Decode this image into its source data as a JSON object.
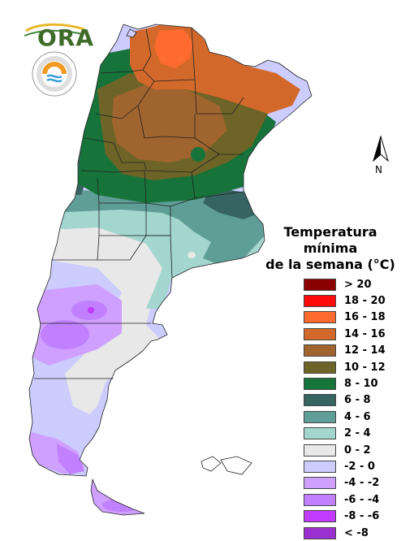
{
  "brand": {
    "logo_text": "ORA"
  },
  "compass": {
    "label": "N",
    "icon": "north-arrow-icon"
  },
  "legend": {
    "title_line1": "Temperatura mínima",
    "title_line2": "de la semana (°C)",
    "items": [
      {
        "label": "> 20",
        "color": "#8b0000"
      },
      {
        "label": "18 - 20",
        "color": "#ff0a0a"
      },
      {
        "label": "16 - 18",
        "color": "#ff6a2e"
      },
      {
        "label": "14 - 16",
        "color": "#d2692a"
      },
      {
        "label": "12 - 14",
        "color": "#a0642e"
      },
      {
        "label": "10 - 12",
        "color": "#6e6428"
      },
      {
        "label": "8 - 10",
        "color": "#16733a"
      },
      {
        "label": "6 - 8",
        "color": "#356462"
      },
      {
        "label": "4 - 6",
        "color": "#5f9d97"
      },
      {
        "label": "2 - 4",
        "color": "#a2d6cf"
      },
      {
        "label": "0 - 2",
        "color": "#e8e8e8"
      },
      {
        "label": "-2 - 0",
        "color": "#ccccff"
      },
      {
        "label": "-4 - -2",
        "color": "#cfa0ff"
      },
      {
        "label": "-6 - -4",
        "color": "#c080ff"
      },
      {
        "label": "-8 - -6",
        "color": "#c03aff"
      },
      {
        "label": "< -8",
        "color": "#9b30d0"
      }
    ]
  }
}
